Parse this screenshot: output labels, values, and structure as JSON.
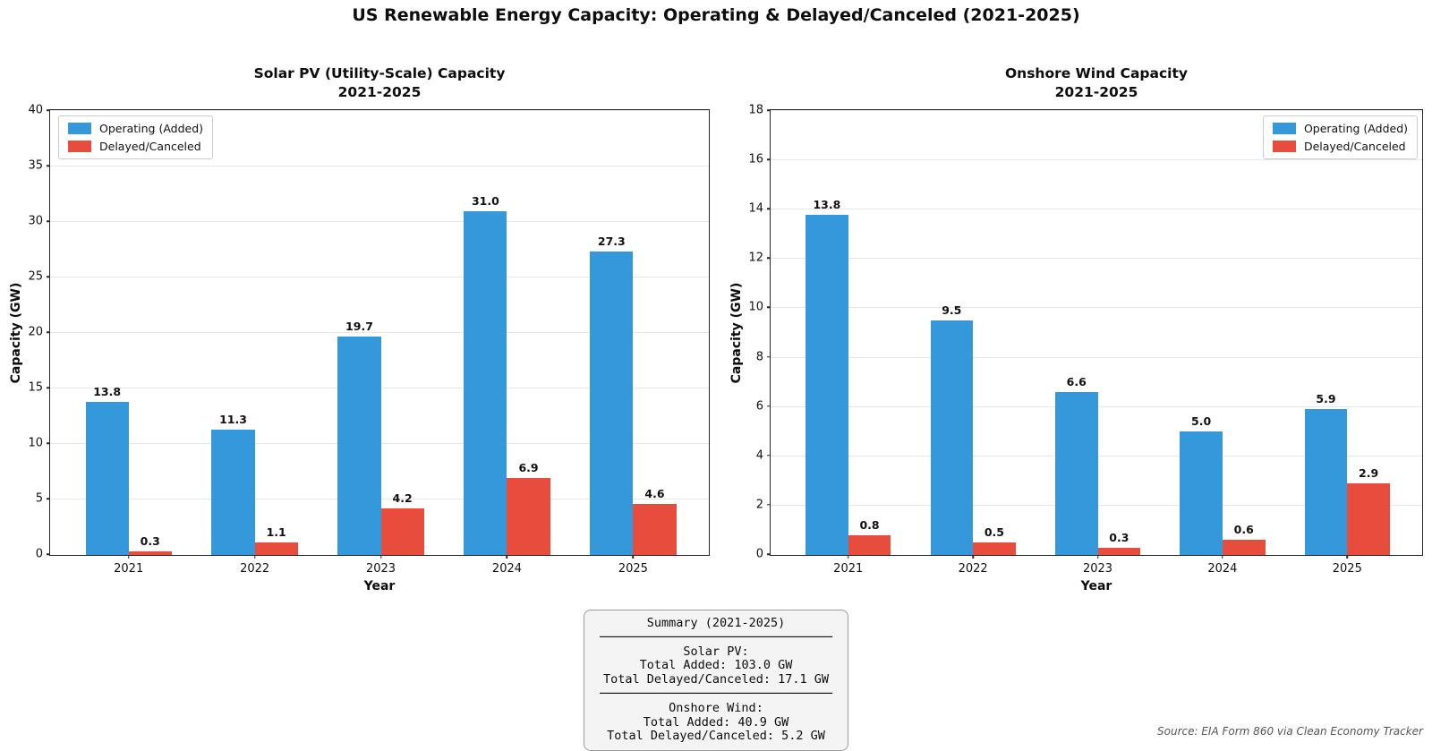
{
  "figure": {
    "title": "US Renewable Energy Capacity: Operating & Delayed/Canceled (2021-2025)",
    "source_note": "Source: EIA Form 860 via Clean Economy Tracker"
  },
  "colors": {
    "operating": "#3498db",
    "delayed": "#e74c3c",
    "grid": "#e7e7e7",
    "spine": "#262626",
    "summary_bg": "#f4f4f4",
    "source_text": "#555555"
  },
  "chart_data": [
    {
      "type": "bar",
      "title": "Solar PV (Utility-Scale) Capacity\n2021-2025",
      "title_lines": [
        "Solar PV (Utility-Scale) Capacity",
        "2021-2025"
      ],
      "xlabel": "Year",
      "ylabel": "Capacity (GW)",
      "categories": [
        "2021",
        "2022",
        "2023",
        "2024",
        "2025"
      ],
      "series": [
        {
          "name": "Operating (Added)",
          "color": "#3498db",
          "values": [
            13.8,
            11.3,
            19.7,
            31.0,
            27.3
          ]
        },
        {
          "name": "Delayed/Canceled",
          "color": "#e74c3c",
          "values": [
            0.3,
            1.1,
            4.2,
            6.9,
            4.6
          ]
        }
      ],
      "ylim": [
        0,
        40
      ],
      "ytick_step": 5,
      "grid": true,
      "legend_position": "upper-left"
    },
    {
      "type": "bar",
      "title": "Onshore Wind Capacity\n2021-2025",
      "title_lines": [
        "Onshore Wind Capacity",
        "2021-2025"
      ],
      "xlabel": "Year",
      "ylabel": "Capacity (GW)",
      "categories": [
        "2021",
        "2022",
        "2023",
        "2024",
        "2025"
      ],
      "series": [
        {
          "name": "Operating (Added)",
          "color": "#3498db",
          "values": [
            13.8,
            9.5,
            6.6,
            5.0,
            5.9
          ]
        },
        {
          "name": "Delayed/Canceled",
          "color": "#e74c3c",
          "values": [
            0.8,
            0.5,
            0.3,
            0.6,
            2.9
          ]
        }
      ],
      "ylim": [
        0,
        18
      ],
      "ytick_step": 2,
      "grid": true,
      "legend_position": "upper-right"
    }
  ],
  "summary_box": {
    "title": "Summary (2021-2025)",
    "separator": "────────────────────────────────",
    "sections": [
      {
        "heading": "Solar PV:",
        "lines": [
          "Total Added: 103.0 GW",
          "Total Delayed/Canceled: 17.1 GW"
        ]
      },
      {
        "heading": "Onshore Wind:",
        "lines": [
          "Total Added: 40.9 GW",
          "Total Delayed/Canceled: 5.2 GW"
        ]
      }
    ]
  }
}
